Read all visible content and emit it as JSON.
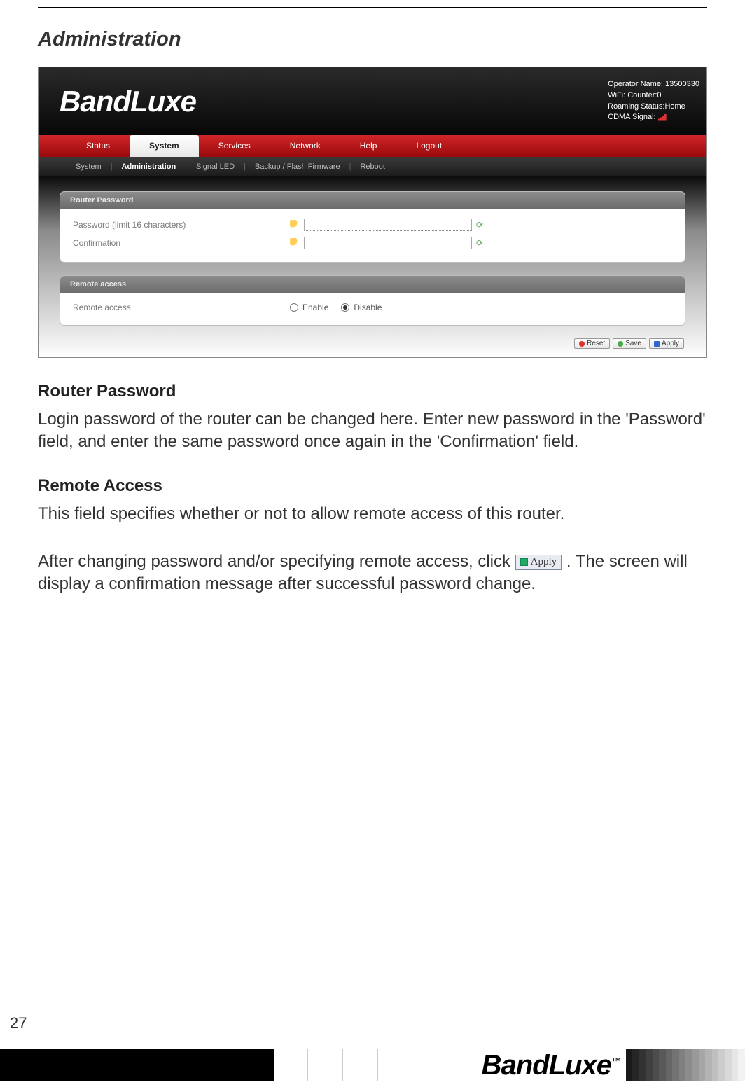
{
  "title": "Administration",
  "screenshot": {
    "logo": "BandLuxe",
    "status": {
      "line1": "Operator Name: 13500330",
      "line2": "WiFi: Counter:0",
      "line3": "Roaming Status:Home",
      "line4": "CDMA Signal:"
    },
    "nav_main": [
      "Status",
      "System",
      "Services",
      "Network",
      "Help",
      "Logout"
    ],
    "nav_main_active": "System",
    "nav_sub": [
      "System",
      "Administration",
      "Signal LED",
      "Backup / Flash Firmware",
      "Reboot"
    ],
    "nav_sub_active": "Administration",
    "panel1": {
      "title": "Router Password",
      "row1_label": "Password (limit 16 characters)",
      "row2_label": "Confirmation"
    },
    "panel2": {
      "title": "Remote access",
      "row_label": "Remote access",
      "opt_enable": "Enable",
      "opt_disable": "Disable"
    },
    "btn_reset": "Reset",
    "btn_save": "Save",
    "btn_apply": "Apply"
  },
  "sections": {
    "h1": "Router Password",
    "p1": "Login password of the router can be changed here. Enter new password in the 'Password' field, and enter the same password once again in the 'Confirmation' field.",
    "h2": "Remote Access",
    "p2": "This field specifies whether or not to allow remote access of this router.",
    "p3a": "After changing password and/or specifying remote access, click ",
    "apply_label": "Apply",
    "p3b": " . The screen will display a confirmation message after successful password change."
  },
  "footer": {
    "page": "27",
    "logo": "BandLuxe",
    "tm": "™",
    "grad_colors": [
      "#1a1a1a",
      "#262626",
      "#333333",
      "#404040",
      "#4d4d4d",
      "#595959",
      "#666666",
      "#737373",
      "#808080",
      "#8c8c8c",
      "#999999",
      "#a6a6a6",
      "#b3b3b3",
      "#bfbfbf",
      "#cccccc",
      "#d9d9d9",
      "#e6e6e6",
      "#f2f2f2"
    ]
  }
}
